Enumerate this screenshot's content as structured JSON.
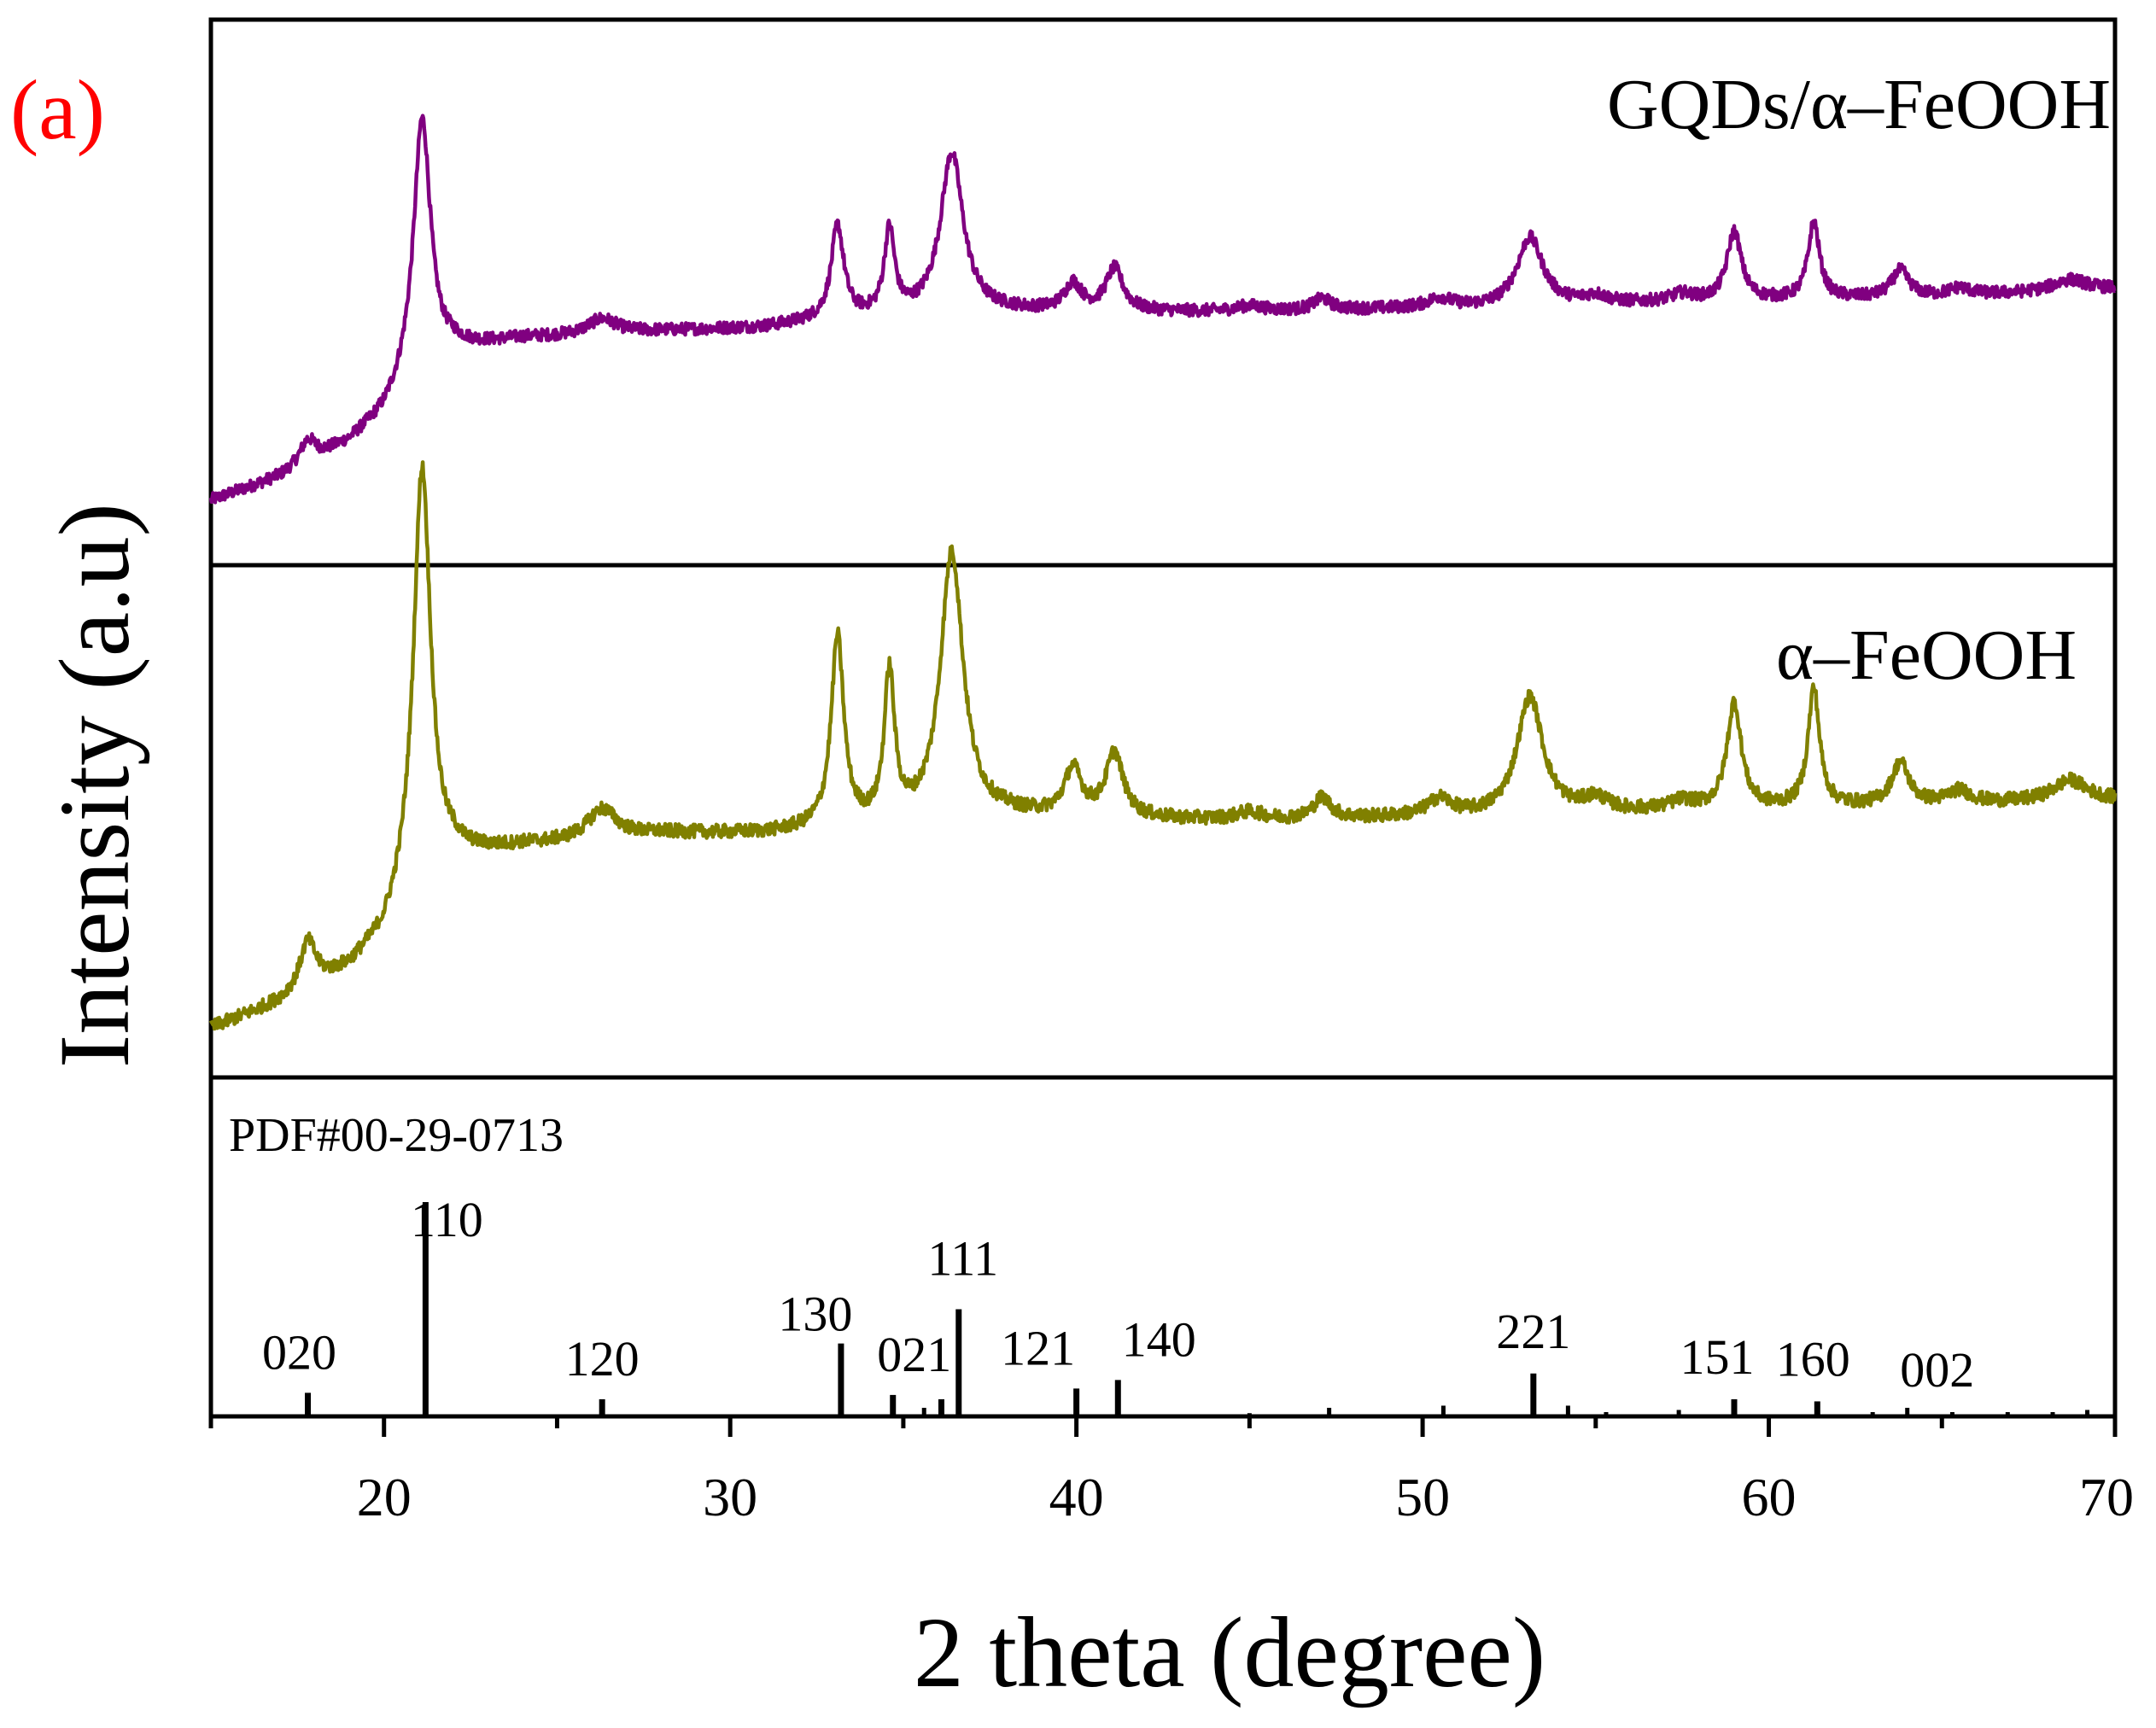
{
  "panel_label": "(a)",
  "chart_data": {
    "type": "line",
    "title": "",
    "xlabel": "2 theta (degree)",
    "ylabel": "Intensity (a.u)",
    "xlim": [
      15,
      70
    ],
    "xticks": [
      20,
      30,
      40,
      50,
      60,
      70
    ],
    "grid": false,
    "legend": "none",
    "colors": {
      "composite": "#800080",
      "goethite": "#808000",
      "reference": "#000000",
      "panel_label": "#ff0000"
    },
    "series": [
      {
        "name": "GQDs/α–FeOOH",
        "base_ylim": [
          0,
          100
        ],
        "baseline": [
          [
            15,
            3
          ],
          [
            17,
            9
          ],
          [
            19,
            18
          ],
          [
            20,
            25
          ],
          [
            20.6,
            32
          ],
          [
            22,
            42
          ],
          [
            24,
            45
          ],
          [
            28,
            47
          ],
          [
            31,
            48
          ],
          [
            33,
            50
          ],
          [
            36,
            51
          ],
          [
            38,
            52
          ],
          [
            45,
            52
          ],
          [
            50,
            53
          ],
          [
            52,
            53
          ],
          [
            55,
            54
          ],
          [
            60,
            55
          ],
          [
            65,
            56
          ],
          [
            70,
            58
          ]
        ],
        "peaks": [
          [
            17.8,
            6,
            0.28
          ],
          [
            21.1,
            67,
            0.3
          ],
          [
            26.3,
            4,
            0.5
          ],
          [
            33.1,
            24,
            0.22
          ],
          [
            34.6,
            22,
            0.18
          ],
          [
            36.4,
            42,
            0.4
          ],
          [
            39.9,
            7,
            0.3
          ],
          [
            41.1,
            11,
            0.3
          ],
          [
            45,
            1.5,
            0.5
          ],
          [
            47.1,
            3,
            0.3
          ],
          [
            50.5,
            2.5,
            0.4
          ],
          [
            53.1,
            18,
            0.45
          ],
          [
            55,
            2,
            0.4
          ],
          [
            57.5,
            2,
            0.4
          ],
          [
            59,
            18,
            0.25
          ],
          [
            61.3,
            20,
            0.2
          ],
          [
            63.8,
            7,
            0.3
          ],
          [
            65.5,
            2,
            0.4
          ],
          [
            68.7,
            3,
            0.6
          ]
        ]
      },
      {
        "name": "α–FeOOH",
        "base_ylim": [
          0,
          100
        ],
        "baseline": [
          [
            15,
            3
          ],
          [
            17,
            9
          ],
          [
            19,
            17
          ],
          [
            20,
            24
          ],
          [
            20.6,
            32
          ],
          [
            22,
            43
          ],
          [
            24,
            46
          ],
          [
            28,
            49
          ],
          [
            31,
            49
          ],
          [
            33,
            50
          ],
          [
            36,
            51
          ],
          [
            38,
            53
          ],
          [
            45,
            52
          ],
          [
            50,
            53
          ],
          [
            52,
            53
          ],
          [
            55,
            54
          ],
          [
            60,
            55
          ],
          [
            65,
            56
          ],
          [
            70,
            57
          ]
        ],
        "peaks": [
          [
            17.8,
            11,
            0.28
          ],
          [
            21.1,
            100,
            0.3
          ],
          [
            26.3,
            7,
            0.5
          ],
          [
            33.1,
            45,
            0.22
          ],
          [
            34.6,
            35,
            0.18
          ],
          [
            36.4,
            64,
            0.4
          ],
          [
            39.9,
            11,
            0.3
          ],
          [
            41.1,
            15,
            0.3
          ],
          [
            45,
            2,
            0.5
          ],
          [
            47.1,
            5,
            0.3
          ],
          [
            50.5,
            4,
            0.4
          ],
          [
            53.1,
            28,
            0.45
          ],
          [
            55,
            3,
            0.4
          ],
          [
            57.5,
            2,
            0.4
          ],
          [
            59,
            25,
            0.25
          ],
          [
            61.3,
            28,
            0.2
          ],
          [
            63.8,
            10,
            0.3
          ],
          [
            65.5,
            3,
            0.4
          ],
          [
            68.7,
            5,
            0.6
          ]
        ]
      }
    ],
    "series_labels": [
      "GQDs/α–FeOOH",
      "α–FeOOH"
    ],
    "reference": {
      "name": "PDF#00-29-0713",
      "ylim": [
        0,
        100
      ],
      "lines": [
        {
          "x": 17.8,
          "h": 11,
          "hkl": "020"
        },
        {
          "x": 21.2,
          "h": 100,
          "hkl": "110"
        },
        {
          "x": 26.3,
          "h": 8,
          "hkl": "120"
        },
        {
          "x": 33.2,
          "h": 34,
          "hkl": "130"
        },
        {
          "x": 34.7,
          "h": 10,
          "hkl": "021"
        },
        {
          "x": 35.6,
          "h": 4,
          "hkl": ""
        },
        {
          "x": 36.1,
          "h": 8,
          "hkl": ""
        },
        {
          "x": 36.6,
          "h": 50,
          "hkl": "111"
        },
        {
          "x": 40.0,
          "h": 13,
          "hkl": "121"
        },
        {
          "x": 41.2,
          "h": 17,
          "hkl": "140"
        },
        {
          "x": 45.0,
          "h": 1.5,
          "hkl": ""
        },
        {
          "x": 47.3,
          "h": 4,
          "hkl": ""
        },
        {
          "x": 50.6,
          "h": 5,
          "hkl": ""
        },
        {
          "x": 53.2,
          "h": 20,
          "hkl": "221"
        },
        {
          "x": 54.2,
          "h": 5,
          "hkl": ""
        },
        {
          "x": 55.3,
          "h": 2,
          "hkl": ""
        },
        {
          "x": 57.4,
          "h": 3,
          "hkl": ""
        },
        {
          "x": 59.0,
          "h": 8,
          "hkl": "151"
        },
        {
          "x": 61.4,
          "h": 7,
          "hkl": "160"
        },
        {
          "x": 63.0,
          "h": 2,
          "hkl": ""
        },
        {
          "x": 64.0,
          "h": 4,
          "hkl": "002"
        },
        {
          "x": 65.3,
          "h": 2,
          "hkl": ""
        },
        {
          "x": 66.9,
          "h": 2,
          "hkl": ""
        },
        {
          "x": 68.2,
          "h": 2,
          "hkl": ""
        },
        {
          "x": 69.2,
          "h": 3,
          "hkl": ""
        }
      ]
    }
  }
}
